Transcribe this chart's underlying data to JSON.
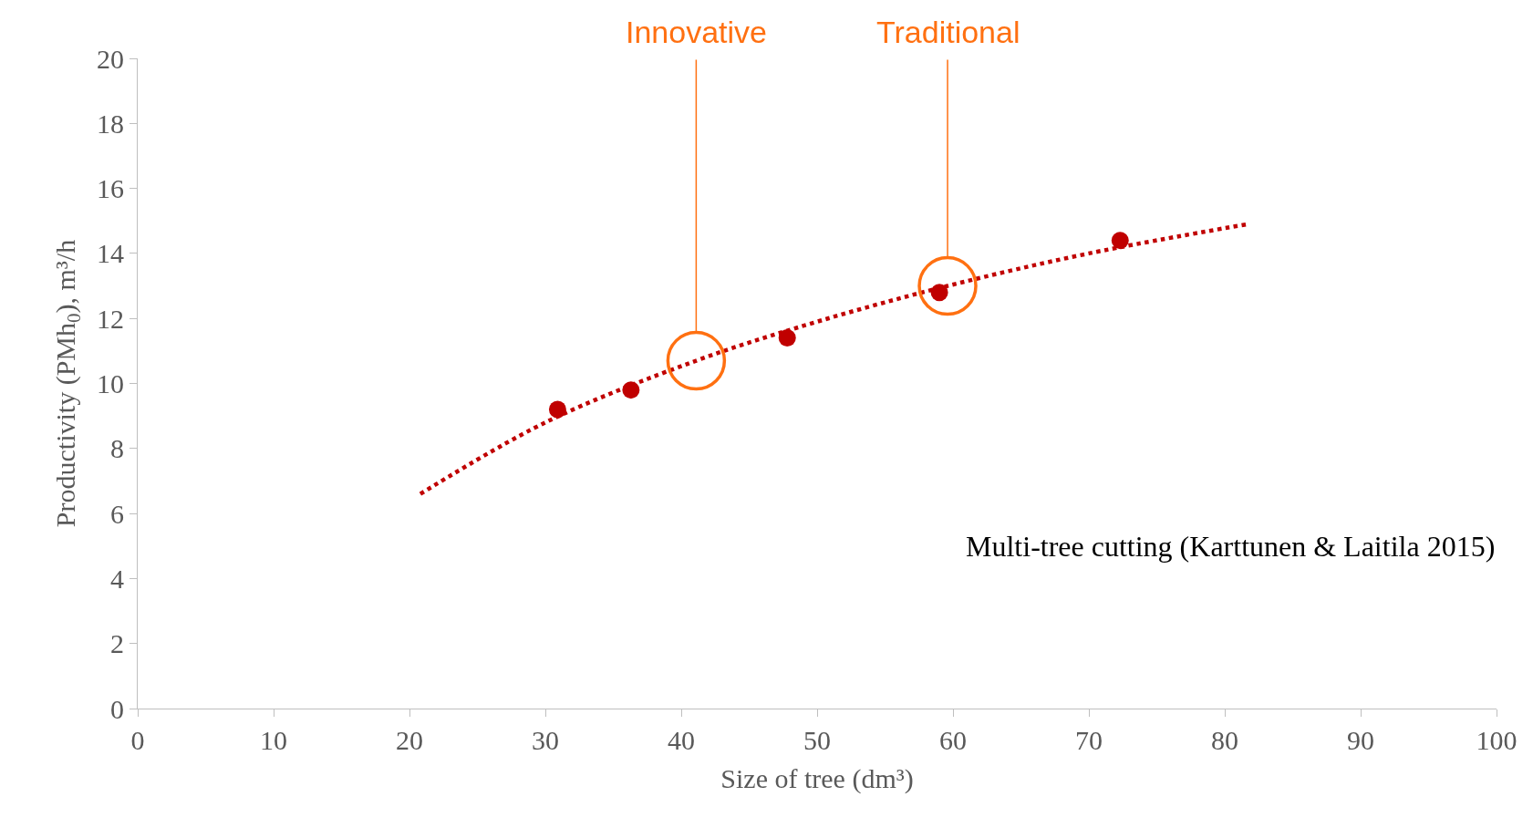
{
  "chart_data": {
    "type": "scatter",
    "xlabel": "Size of tree (dm³)",
    "ylabel": "Productivity (PMh$_{0}$), m³/h",
    "series": [
      {
        "color": "#c00000",
        "marker": "circle",
        "x": [
          30.9,
          36.3,
          47.8,
          59.0,
          72.3
        ],
        "values": [
          9.2,
          9.8,
          11.4,
          12.8,
          14.4
        ]
      },
      {
        "type": "line",
        "color": "#c00000",
        "line_style": "dotted",
        "marker": "none",
        "x": [
          20.8,
          30,
          41.1,
          50,
          59.6,
          70,
          81.7
        ],
        "values": [
          6.6,
          8.8,
          10.7,
          11.9,
          13.0,
          14.0,
          14.9
        ]
      }
    ],
    "xlim": [
      0,
      100
    ],
    "xticks": [
      0,
      10,
      20,
      30,
      40,
      50,
      60,
      70,
      80,
      90,
      100
    ],
    "ylim": [
      0,
      20
    ],
    "yticks": [
      0,
      2,
      4,
      6,
      8,
      10,
      12,
      14,
      16,
      18,
      20
    ],
    "annotations": [
      {
        "text": "Innovative",
        "x": 41.1,
        "y": 10.7
      },
      {
        "text": "Traditional",
        "x": 59.6,
        "y": 13.0
      },
      "Multi-tree cutting (Karttunen & Laitila 2015)"
    ]
  }
}
